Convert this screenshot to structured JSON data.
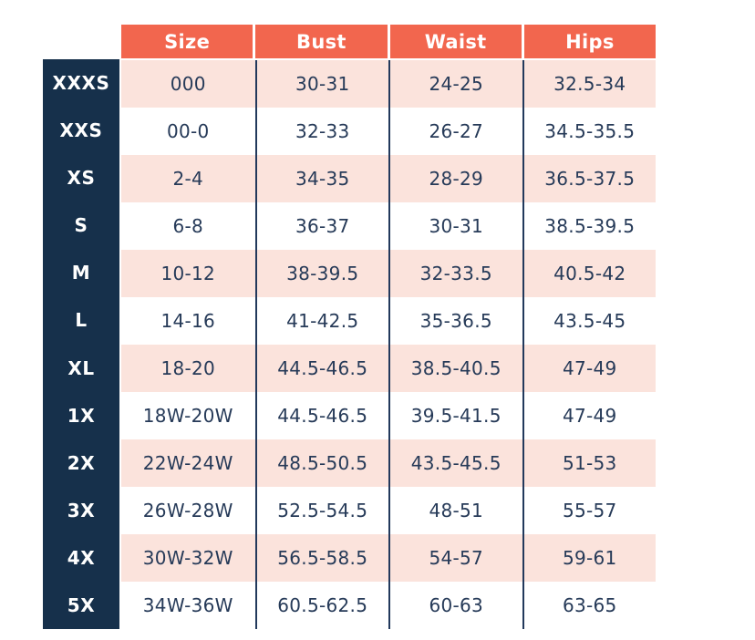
{
  "chart_data": {
    "type": "table",
    "columns": [
      "Size",
      "Bust",
      "Waist",
      "Hips"
    ],
    "row_labels": [
      "XXXS",
      "XXS",
      "XS",
      "S",
      "M",
      "L",
      "XL",
      "1X",
      "2X",
      "3X",
      "4X",
      "5X"
    ],
    "rows": [
      {
        "label": "XXXS",
        "values": [
          "000",
          "30-31",
          "24-25",
          "32.5-34"
        ]
      },
      {
        "label": "XXS",
        "values": [
          "00-0",
          "32-33",
          "26-27",
          "34.5-35.5"
        ]
      },
      {
        "label": "XS",
        "values": [
          "2-4",
          "34-35",
          "28-29",
          "36.5-37.5"
        ]
      },
      {
        "label": "S",
        "values": [
          "6-8",
          "36-37",
          "30-31",
          "38.5-39.5"
        ]
      },
      {
        "label": "M",
        "values": [
          "10-12",
          "38-39.5",
          "32-33.5",
          "40.5-42"
        ]
      },
      {
        "label": "L",
        "values": [
          "14-16",
          "41-42.5",
          "35-36.5",
          "43.5-45"
        ]
      },
      {
        "label": "XL",
        "values": [
          "18-20",
          "44.5-46.5",
          "38.5-40.5",
          "47-49"
        ]
      },
      {
        "label": "1X",
        "values": [
          "18W-20W",
          "44.5-46.5",
          "39.5-41.5",
          "47-49"
        ]
      },
      {
        "label": "2X",
        "values": [
          "22W-24W",
          "48.5-50.5",
          "43.5-45.5",
          "51-53"
        ]
      },
      {
        "label": "3X",
        "values": [
          "26W-28W",
          "52.5-54.5",
          "48-51",
          "55-57"
        ]
      },
      {
        "label": "4X",
        "values": [
          "30W-32W",
          "56.5-58.5",
          "54-57",
          "59-61"
        ]
      },
      {
        "label": "5X",
        "values": [
          "34W-36W",
          "60.5-62.5",
          "60-63",
          "63-65"
        ]
      }
    ],
    "layout_hints": {
      "alternating_row_shading": "odd rows pink, even rows white",
      "column_separators": "thin navy vertical lines between value columns"
    }
  },
  "colors": {
    "header_bg": "#f2664e",
    "header_text": "#ffffff",
    "label_column_bg": "#16304b",
    "label_text": "#ffffff",
    "row_pink": "#fbe3dc",
    "row_white": "#ffffff",
    "value_text": "#263a58",
    "separator_line": "#22395c",
    "page_bg": "#ffffff"
  }
}
